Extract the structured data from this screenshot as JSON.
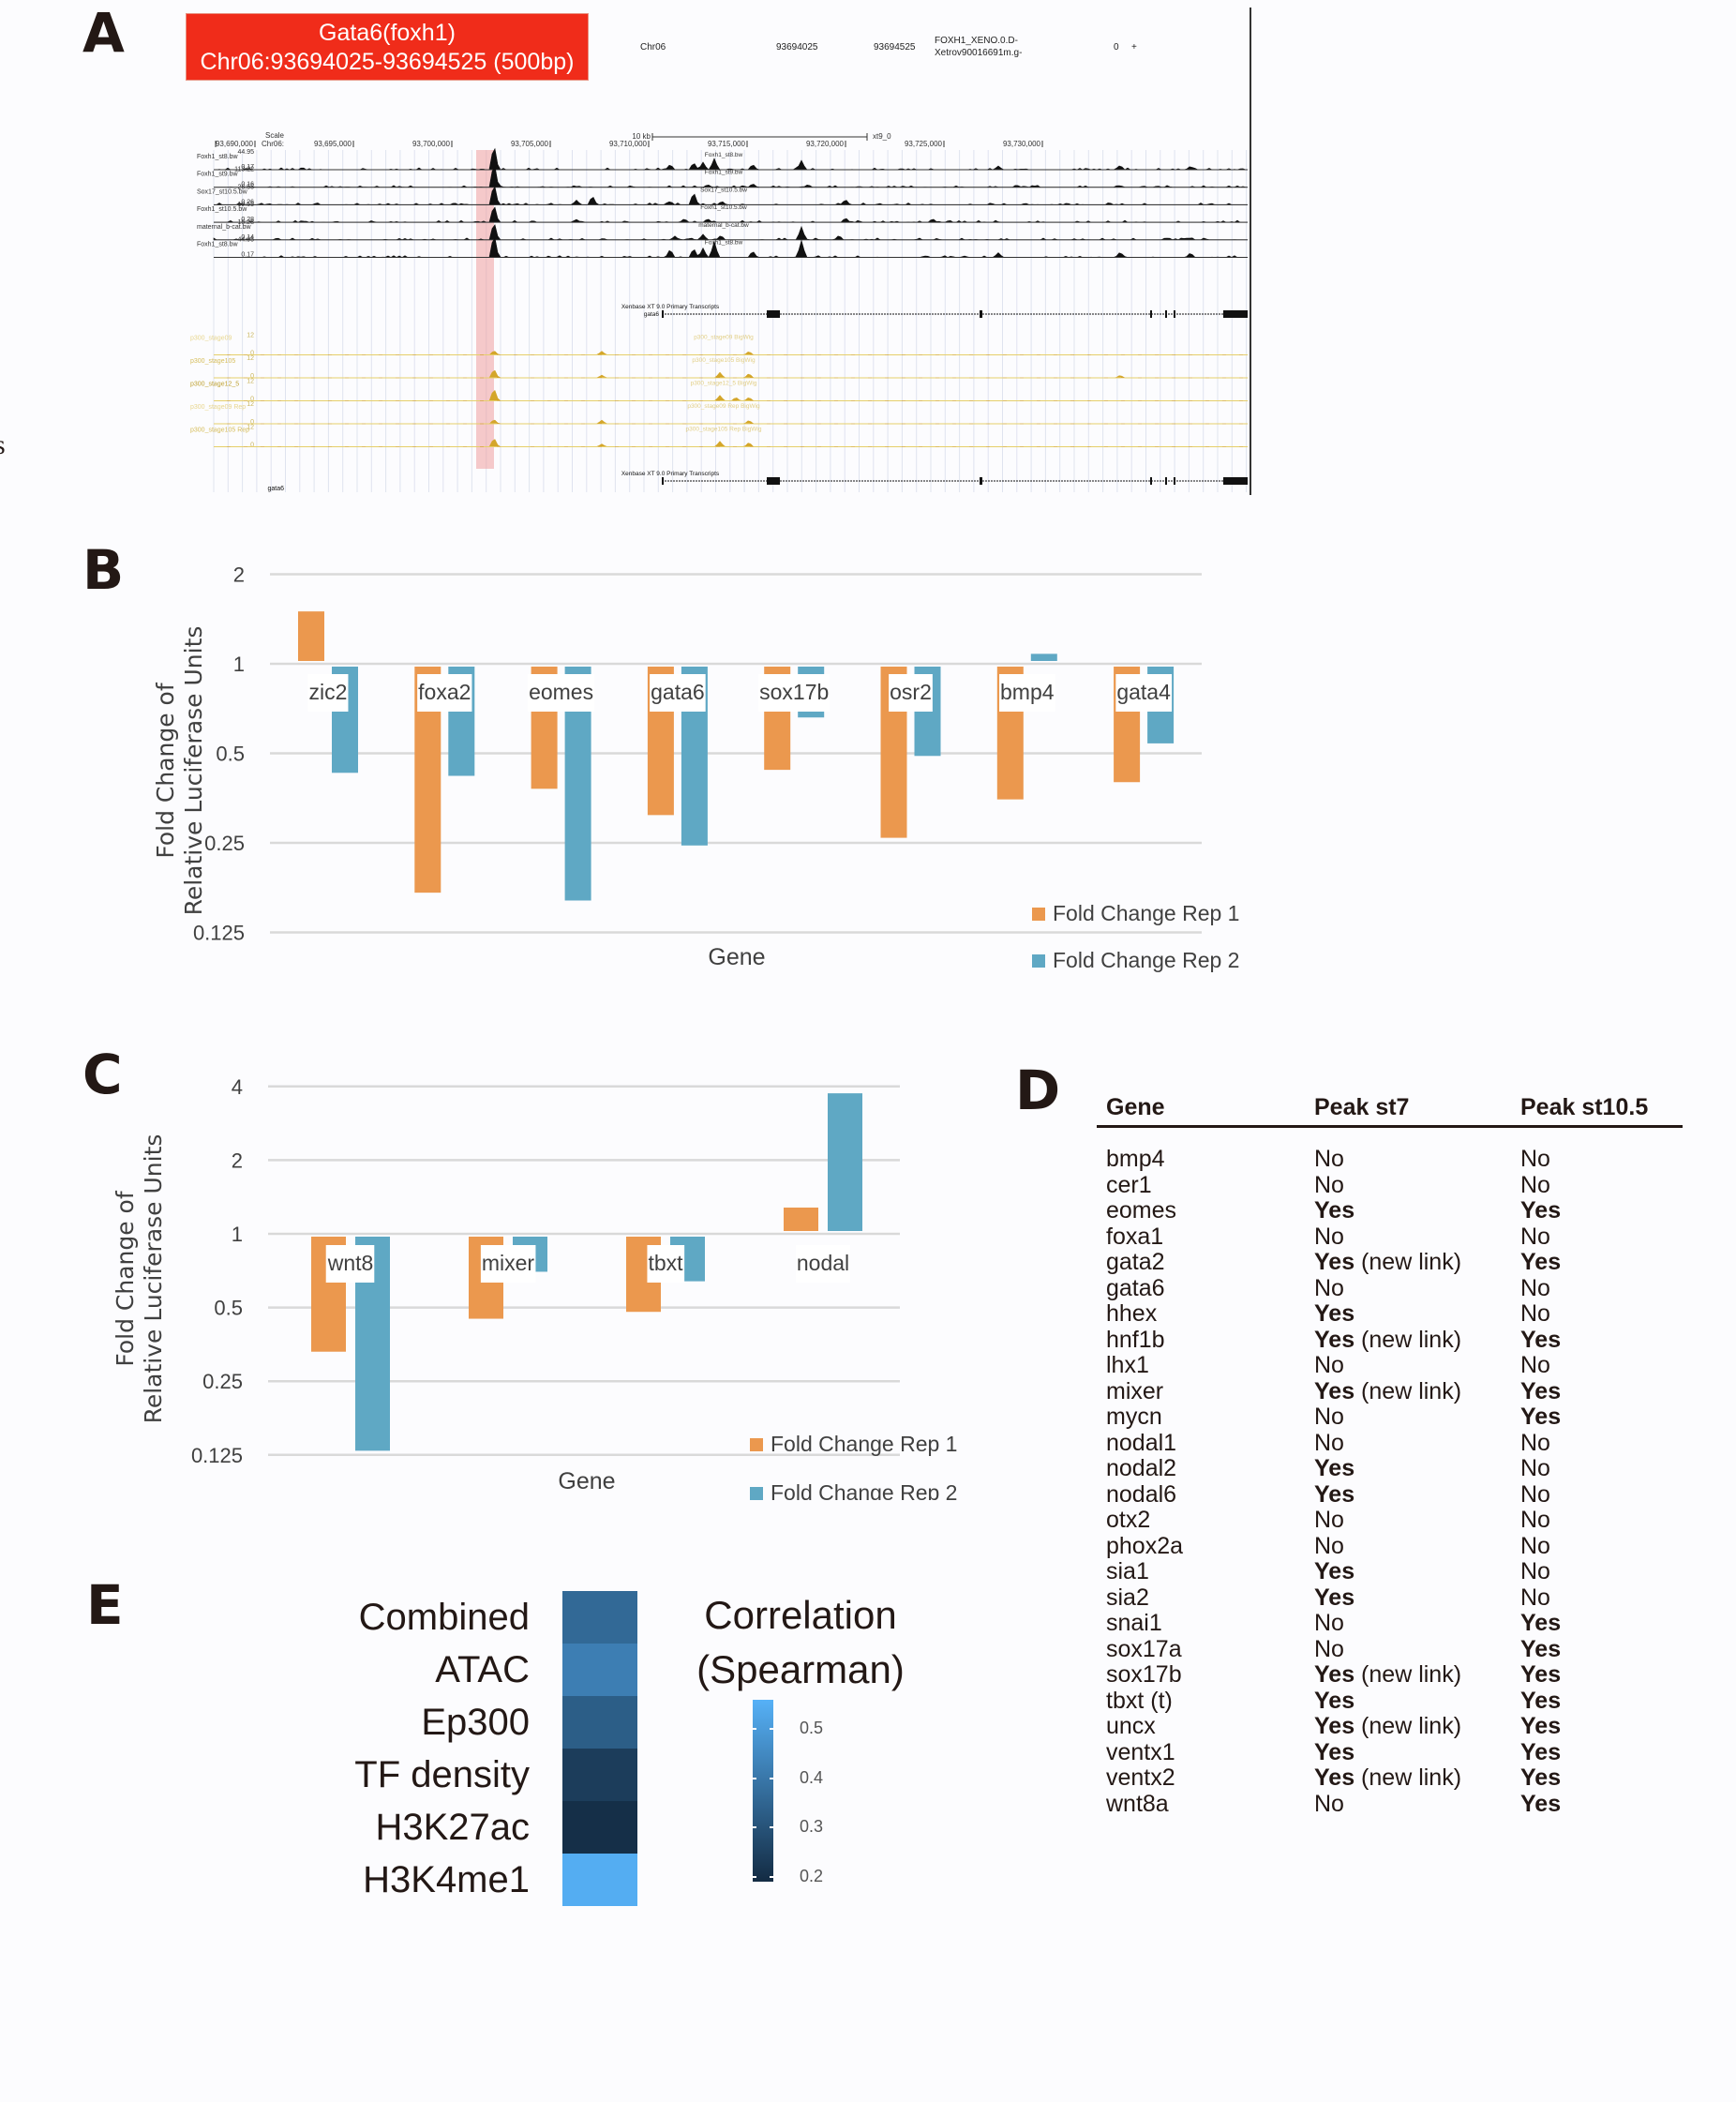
{
  "panels": {
    "A": "A",
    "B": "B",
    "C": "C",
    "D": "D",
    "E": "E"
  },
  "stray_margin_text": [
    "s"
  ],
  "panel_a": {
    "region_title": "Gata6(foxh1)",
    "region_coords": "Chr06:93694025-93694525 (500bp)",
    "highlight_color": "#f02c1a",
    "bed_row": {
      "chrom": "Chr06",
      "start": "93694025",
      "end": "93694525",
      "name_line1": "FOXH1_XENO.0.D-",
      "name_line2": "Xetrov90016691m.g-",
      "score": "0",
      "strand": "+"
    },
    "scale": {
      "scale_label": "Scale",
      "chrom_label": "Chr06:",
      "scale_bar": "10 kb",
      "assembly": "xt9_0",
      "positions": [
        "93,690,000",
        "93,695,000",
        "93,700,000",
        "93,705,000",
        "93,710,000",
        "93,715,000",
        "93,720,000",
        "93,725,000",
        "93,730,000"
      ]
    },
    "chip_tracks": [
      {
        "name": "Foxh1_st8.bw",
        "max": "44.95",
        "min": "0.17",
        "center_label": "Foxh1_st8.bw"
      },
      {
        "name": "Foxh1_st9.bw",
        "max": "113.22",
        "min": "0.16",
        "center_label": "Foxh1_st9.bw"
      },
      {
        "name": "Sox17_st10.5.bw",
        "max": "26.55",
        "min": "0.26",
        "center_label": "Sox17_st10.5.bw"
      },
      {
        "name": "Foxh1_st10.5.bw",
        "max": "19.55",
        "min": "0.28",
        "center_label": "Foxh1_st10.5.bw"
      },
      {
        "name": "maternal_b-cat.bw",
        "max": "15.28",
        "min": "0.14",
        "center_label": "maternal_b-cat.bw"
      },
      {
        "name": "Foxh1_st8.bw",
        "max": "44.95",
        "min": "0.17",
        "center_label": "Foxh1_st8.bw"
      }
    ],
    "transcripts_label": "Xenbase XT 9.0 Primary Transcripts",
    "gene_label": "gata6",
    "p300_tracks": [
      {
        "name": "p300_stage09",
        "max": "12",
        "min": "0",
        "center_label": "p300_stage09 BigWig"
      },
      {
        "name": "p300_stage105",
        "max": "12",
        "min": "0",
        "center_label": "p300_stage105 BigWig"
      },
      {
        "name": "p300_stage12_5",
        "max": "12",
        "min": "0",
        "center_label": "p300_stage12_5 BigWig"
      },
      {
        "name": "p300_stage09 Rep",
        "max": "12",
        "min": "0",
        "center_label": "p300_stage09 Rep BigWig"
      },
      {
        "name": "p300_stage105 Rep",
        "max": "12",
        "min": "0",
        "center_label": "p300_stage105 Rep BigWig"
      }
    ]
  },
  "chart_data": [
    {
      "id": "B",
      "type": "bar",
      "title": "",
      "xlabel": "Gene",
      "ylabel": "Fold Change of Relative Luciferase Units",
      "ylabel_lines": [
        "Fold Change of",
        "Relative Luciferase Units"
      ],
      "yscale": "log2",
      "baseline": 1,
      "ylim": [
        0.125,
        2
      ],
      "yticks": [
        2,
        1,
        0.5,
        0.25,
        0.125
      ],
      "ytick_labels": [
        "2",
        "1",
        "0.5",
        "0.25",
        "0.125"
      ],
      "grid": true,
      "legend_position": "bottom-right",
      "categories": [
        "zic2",
        "foxa2",
        "eomes",
        "gata6",
        "sox17b",
        "osr2",
        "bmp4",
        "gata4"
      ],
      "series": [
        {
          "name": "Fold Change Rep 1",
          "color": "#eb984e",
          "values": [
            1.5,
            0.17,
            0.38,
            0.31,
            0.44,
            0.26,
            0.35,
            0.4
          ]
        },
        {
          "name": "Fold Change Rep 2",
          "color": "#5fa8c4",
          "values": [
            0.43,
            0.42,
            0.16,
            0.245,
            0.66,
            0.49,
            1.08,
            0.54
          ]
        }
      ]
    },
    {
      "id": "C",
      "type": "bar",
      "title": "",
      "xlabel": "Gene",
      "ylabel": "Fold Change of Relative Luciferase Units",
      "ylabel_lines": [
        "Fold Change of",
        "Relative Luciferase Units"
      ],
      "yscale": "log2",
      "baseline": 1,
      "ylim": [
        0.125,
        4
      ],
      "yticks": [
        4,
        2,
        1,
        0.5,
        0.25,
        0.125
      ],
      "ytick_labels": [
        "4",
        "2",
        "1",
        "0.5",
        "0.25",
        "0.125"
      ],
      "grid": true,
      "legend_position": "bottom-right",
      "categories": [
        "wnt8",
        "mixer",
        "tbxt",
        "nodal"
      ],
      "series": [
        {
          "name": "Fold Change Rep 1",
          "color": "#eb984e",
          "values": [
            0.33,
            0.45,
            0.48,
            1.28
          ]
        },
        {
          "name": "Fold Change Rep 2",
          "color": "#5fa8c4",
          "values": [
            0.13,
            0.7,
            0.64,
            3.75
          ]
        }
      ]
    },
    {
      "id": "E",
      "type": "heatmap",
      "title": "",
      "rows": [
        "Combined",
        "ATAC",
        "Ep300",
        "TF density",
        "H3K27ac",
        "H3K4me1"
      ],
      "columns": [
        ""
      ],
      "values": [
        0.36,
        0.42,
        0.33,
        0.24,
        0.2,
        0.55
      ],
      "colorbar_title_lines": [
        "Correlation",
        "(Spearman)"
      ],
      "colorbar_ticks": [
        0.5,
        0.4,
        0.3,
        0.2
      ],
      "colorbar_tick_labels": [
        "0.5",
        "0.4",
        "0.3",
        "0.2"
      ],
      "colorbar_range": [
        0.19,
        0.56
      ],
      "color_low": "#132b43",
      "color_high": "#56b1f7",
      "legend_position": "right"
    },
    {
      "id": "D",
      "type": "table",
      "columns": [
        "Gene",
        "Peak st7",
        "Peak st10.5"
      ],
      "rows": [
        [
          "bmp4",
          "No",
          "No"
        ],
        [
          "cer1",
          "No",
          "No"
        ],
        [
          "eomes",
          "Yes",
          "Yes"
        ],
        [
          "foxa1",
          "No",
          "No"
        ],
        [
          "gata2",
          "Yes (new link)",
          "Yes"
        ],
        [
          "gata6",
          "No",
          "No"
        ],
        [
          "hhex",
          "Yes",
          "No"
        ],
        [
          "hnf1b",
          "Yes (new link)",
          "Yes"
        ],
        [
          "lhx1",
          "No",
          "No"
        ],
        [
          "mixer",
          "Yes (new link)",
          "Yes"
        ],
        [
          "mycn",
          "No",
          "Yes"
        ],
        [
          "nodal1",
          "No",
          "No"
        ],
        [
          "nodal2",
          "Yes",
          "No"
        ],
        [
          "nodal6",
          "Yes",
          "No"
        ],
        [
          "otx2",
          "No",
          "No"
        ],
        [
          "phox2a",
          "No",
          "No"
        ],
        [
          "sia1",
          "Yes",
          "No"
        ],
        [
          "sia2",
          "Yes",
          "No"
        ],
        [
          "snai1",
          "No",
          "Yes"
        ],
        [
          "sox17a",
          "No",
          "Yes"
        ],
        [
          "sox17b",
          "Yes (new link)",
          "Yes"
        ],
        [
          "tbxt (t)",
          "Yes",
          "Yes"
        ],
        [
          "uncx",
          "Yes (new link)",
          "Yes"
        ],
        [
          "ventx1",
          "Yes",
          "Yes"
        ],
        [
          "ventx2",
          "Yes (new link)",
          "Yes"
        ],
        [
          "wnt8a",
          "No",
          "Yes"
        ]
      ]
    }
  ]
}
